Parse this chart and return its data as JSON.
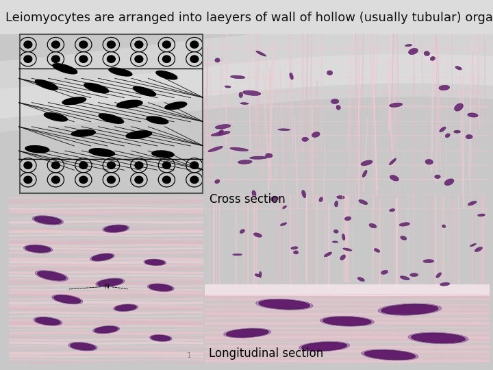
{
  "title": "Leiomyocytes are arranged into laeyers of wall of hollow (usually tubular) organs",
  "title_fontsize": 13,
  "title_color": "#111111",
  "bg_color": "#c8c8c8",
  "label_cross": "Cross section",
  "label_long": "Longitudinal section",
  "label_fontsize": 12,
  "label_bg": "#f2f2f2",
  "cross_bg": "#f0c8d2",
  "long_bg": "#f0c0cc",
  "diagram_border": "#555555"
}
